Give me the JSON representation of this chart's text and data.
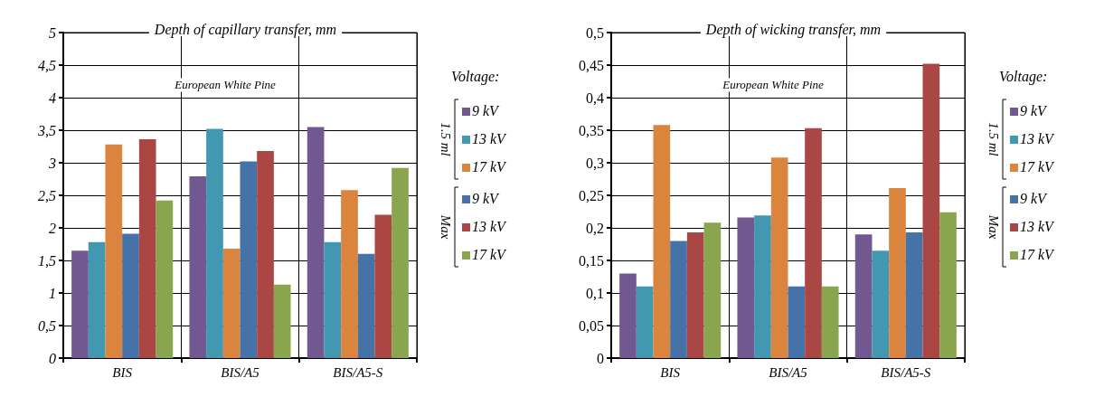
{
  "chart_data": [
    {
      "type": "bar",
      "title": "Depth of capillary transfer, mm",
      "categories": [
        "BIS",
        "BIS/A5",
        "BIS/A5-S"
      ],
      "legend_title": "Voltage:",
      "legend": "right",
      "grid": true,
      "annotations": [
        "European White Pine",
        "1.5 ml",
        "Max"
      ],
      "ylim": [
        0,
        5
      ],
      "yticks": [
        0,
        {
          "value": 0.5,
          "label": "0,5"
        },
        1,
        {
          "value": 1.5,
          "label": "1,5"
        },
        2,
        {
          "value": 2.5,
          "label": "2,5"
        },
        3,
        {
          "value": 3.5,
          "label": "3,5"
        },
        4,
        {
          "value": 4.5,
          "label": "4,5"
        },
        5
      ],
      "series": [
        {
          "name": "9 kV",
          "color": "#715891",
          "values": [
            1.65,
            2.79,
            3.55
          ]
        },
        {
          "name": "13 kV",
          "color": "#4298b0",
          "values": [
            1.78,
            3.52,
            1.78
          ]
        },
        {
          "name": "17 kV",
          "color": "#db843d",
          "values": [
            3.28,
            1.68,
            2.58
          ]
        },
        {
          "name": "9 kV",
          "color": "#4572a7",
          "values": [
            1.91,
            3.02,
            1.6
          ]
        },
        {
          "name": "13 kV",
          "color": "#aa4643",
          "values": [
            3.36,
            3.18,
            2.2
          ]
        },
        {
          "name": "17 kV",
          "color": "#89a54e",
          "values": [
            2.42,
            1.13,
            2.92
          ]
        }
      ]
    },
    {
      "type": "bar",
      "title": "Depth of wicking transfer, mm",
      "categories": [
        "BIS",
        "BIS/A5",
        "BIS/A5-S"
      ],
      "legend_title": "Voltage:",
      "legend": "right",
      "grid": true,
      "annotations": [
        "European White Pine",
        "1.5 ml",
        "Max"
      ],
      "ylim": [
        0,
        0.5
      ],
      "yticks": [
        0,
        {
          "value": 0.05,
          "label": "0,05"
        },
        {
          "value": 0.1,
          "label": "0,1"
        },
        {
          "value": 0.15,
          "label": "0,15"
        },
        {
          "value": 0.2,
          "label": "0,2"
        },
        {
          "value": 0.25,
          "label": "0,25"
        },
        {
          "value": 0.3,
          "label": "0,3"
        },
        {
          "value": 0.35,
          "label": "0,35"
        },
        {
          "value": 0.4,
          "label": "0,4"
        },
        {
          "value": 0.45,
          "label": "0,45"
        },
        {
          "value": 0.5,
          "label": "0,5"
        }
      ],
      "series": [
        {
          "name": "9 kV",
          "color": "#715891",
          "values": [
            0.13,
            0.216,
            0.19
          ]
        },
        {
          "name": "13 kV",
          "color": "#4298b0",
          "values": [
            0.11,
            0.219,
            0.165
          ]
        },
        {
          "name": "17 kV",
          "color": "#db843d",
          "values": [
            0.358,
            0.308,
            0.261
          ]
        },
        {
          "name": "9 kV",
          "color": "#4572a7",
          "values": [
            0.18,
            0.11,
            0.193
          ]
        },
        {
          "name": "13 kV",
          "color": "#aa4643",
          "values": [
            0.193,
            0.353,
            0.452
          ]
        },
        {
          "name": "17 kV",
          "color": "#89a54e",
          "values": [
            0.208,
            0.11,
            0.224
          ]
        }
      ]
    }
  ]
}
